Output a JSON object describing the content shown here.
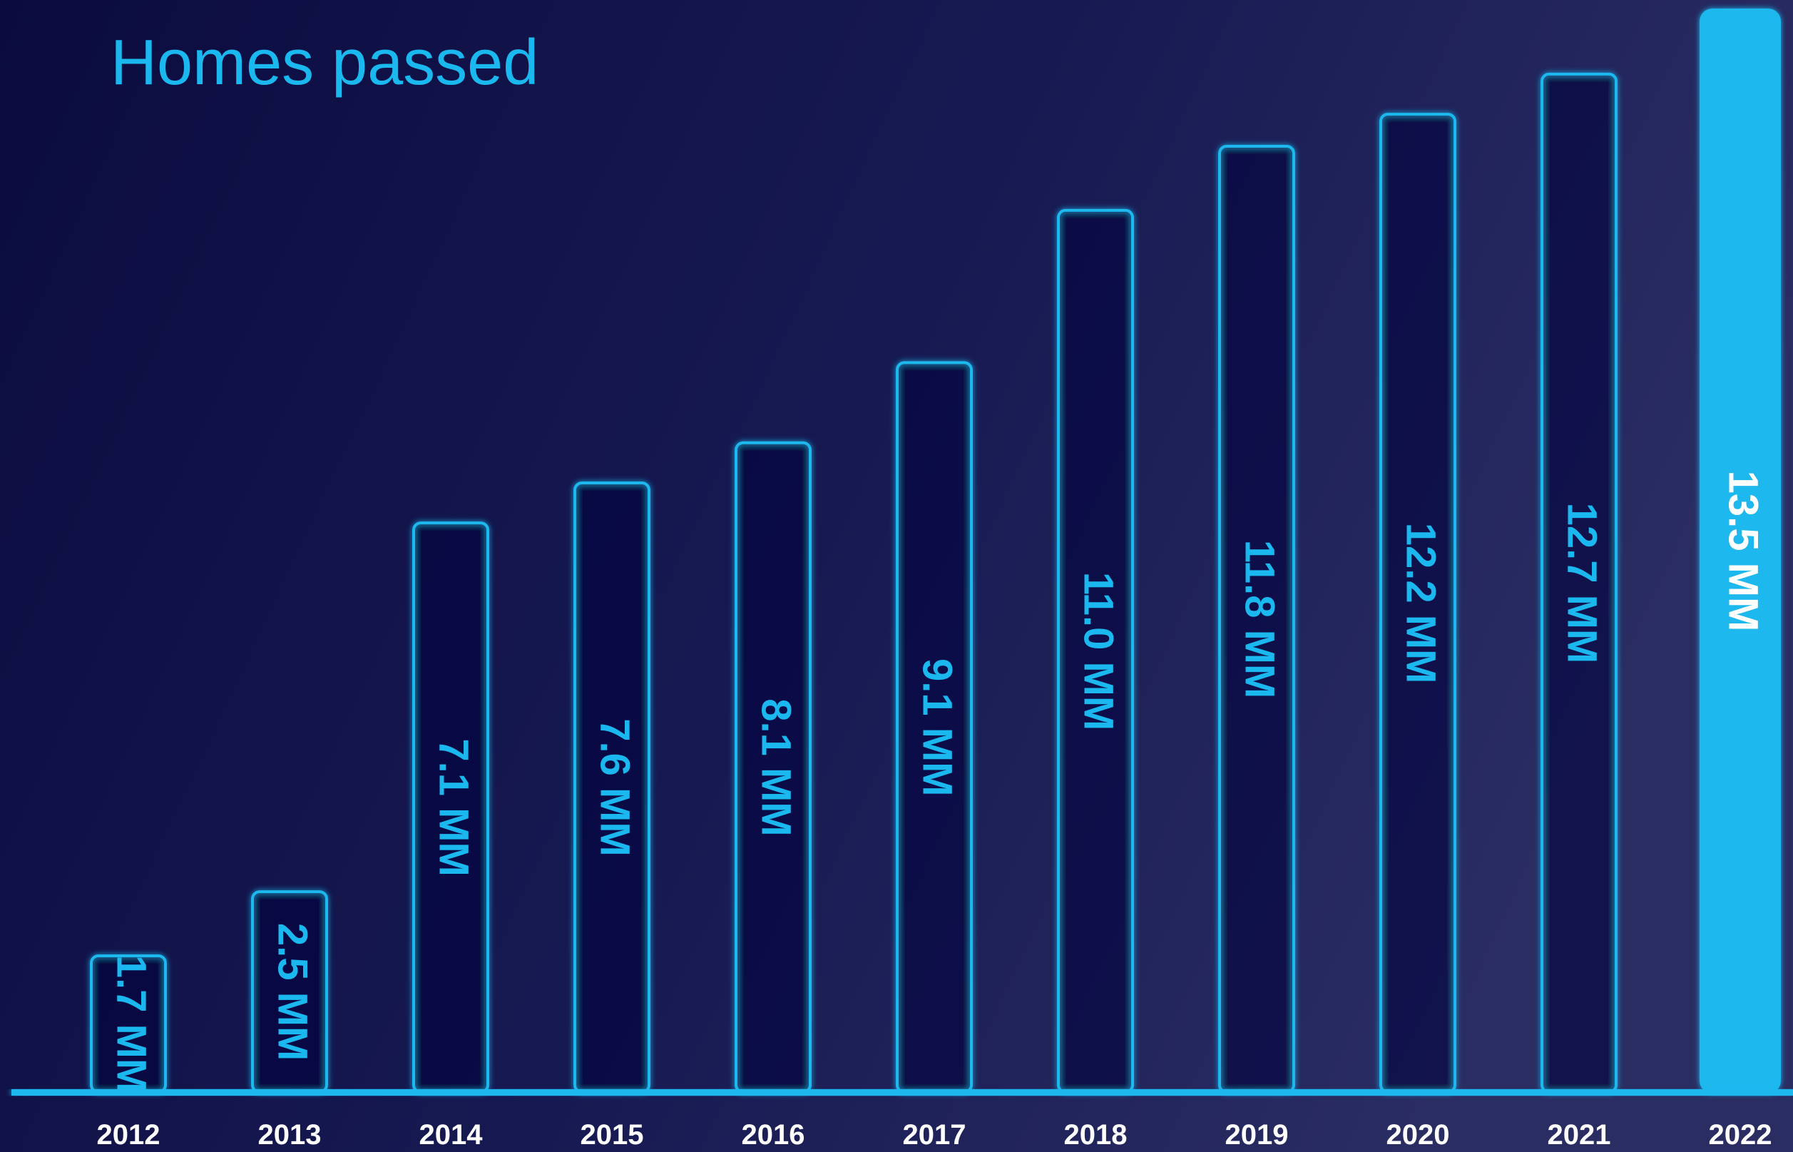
{
  "chart_data": {
    "type": "bar",
    "title": "Homes passed",
    "categories": [
      "2012",
      "2013",
      "2014",
      "2015",
      "2016",
      "2017",
      "2018",
      "2019",
      "2020",
      "2021",
      "2022"
    ],
    "values": [
      1.7,
      2.5,
      7.1,
      7.6,
      8.1,
      9.1,
      11.0,
      11.8,
      12.2,
      12.7,
      13.5
    ],
    "value_labels": [
      "1.7 MM",
      "2.5 MM",
      "7.1 MM",
      "7.6 MM",
      "8.1 MM",
      "9.1 MM",
      "11.0 MM",
      "11.8 MM",
      "12.2 MM",
      "12.7 MM",
      "13.5 MM"
    ],
    "color": "#1ab8ee",
    "highlight": "2022"
  }
}
